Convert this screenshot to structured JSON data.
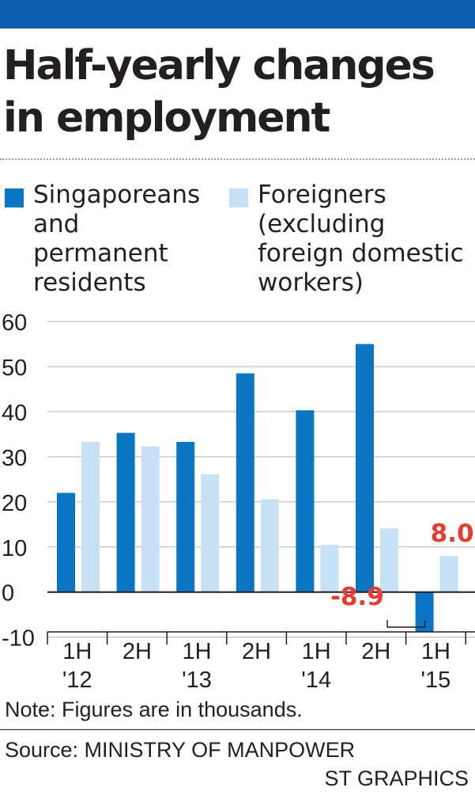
{
  "header": {
    "title": "Half-yearly changes in employment",
    "accent_color": "#0d5eaf"
  },
  "legend": [
    {
      "label": "Singaporeans\nand\npermanent\nresidents",
      "color": "#0a75c2"
    },
    {
      "label": "Foreigners\n(excluding\nforeign domestic\nworkers)",
      "color": "#c6e0f5"
    }
  ],
  "chart_data": {
    "type": "bar",
    "title": "Half-yearly changes in employment",
    "xlabel": "",
    "ylabel": "",
    "ylim": [
      -10,
      60
    ],
    "yticks": [
      60,
      50,
      40,
      30,
      20,
      10,
      0,
      -10
    ],
    "grid": true,
    "legend_position": "top",
    "categories": [
      "1H\n'12",
      "2H",
      "1H\n'13",
      "2H",
      "1H\n'14",
      "2H",
      "1H\n'15"
    ],
    "series": [
      {
        "name": "Singaporeans and permanent residents",
        "color": "#0a75c2",
        "values": [
          22,
          35.3,
          33.3,
          48.5,
          40.3,
          55,
          -8.9
        ]
      },
      {
        "name": "Foreigners (excluding foreign domestic workers)",
        "color": "#c6e0f5",
        "values": [
          33.3,
          32.3,
          26.1,
          20.6,
          10.5,
          14.1,
          8.0
        ]
      }
    ],
    "annotations": [
      {
        "text": "8.0",
        "series": 1,
        "index": 6,
        "color": "#e63b2e"
      },
      {
        "text": "-8.9",
        "series": 0,
        "index": 6,
        "color": "#e63b2e"
      }
    ]
  },
  "footer": {
    "note": "Note: Figures are in thousands.",
    "source": "Source: MINISTRY OF MANPOWER",
    "credit": "ST GRAPHICS"
  }
}
